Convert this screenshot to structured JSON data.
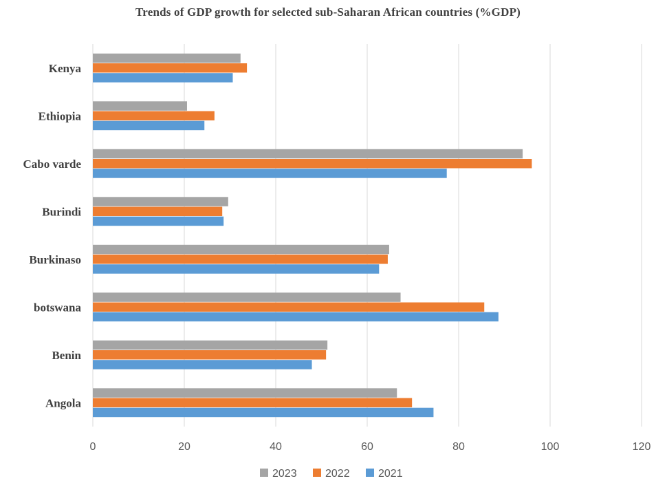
{
  "chart_data": {
    "type": "bar",
    "orientation": "horizontal",
    "title": "Trends of GDP growth for selected sub-Saharan African countries  (%GDP)",
    "categories": [
      "Angola",
      "Benin",
      "botswana",
      "Burkinaso",
      "Burindi",
      "Cabo varde",
      "Ethiopia",
      "Kenya"
    ],
    "series": [
      {
        "name": "2023",
        "color": "#a5a5a5",
        "values": [
          66.5,
          51.3,
          67.3,
          64.8,
          29.6,
          94.0,
          20.6,
          32.3
        ]
      },
      {
        "name": "2022",
        "color": "#ed7d31",
        "values": [
          69.8,
          51.0,
          85.6,
          64.5,
          28.3,
          96.0,
          26.6,
          33.7
        ]
      },
      {
        "name": "2021",
        "color": "#5b9bd5",
        "values": [
          74.5,
          47.9,
          88.7,
          62.6,
          28.6,
          77.4,
          24.4,
          30.6
        ]
      }
    ],
    "xlim": [
      0,
      120
    ],
    "xticks": [
      0,
      20,
      40,
      60,
      80,
      100,
      120
    ],
    "xlabel": "",
    "ylabel": "",
    "grid": true,
    "legend": "bottom"
  }
}
